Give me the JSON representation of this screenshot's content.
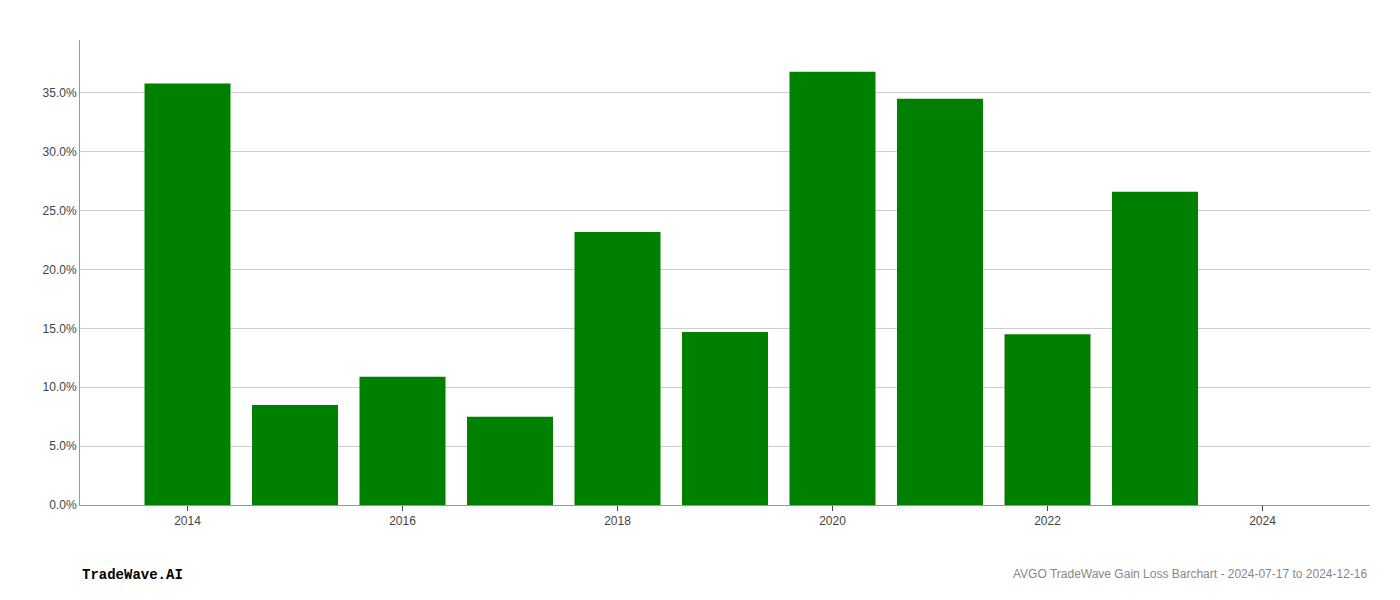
{
  "chart_data": {
    "type": "bar",
    "x": [
      2014,
      2015,
      2016,
      2017,
      2018,
      2019,
      2020,
      2021,
      2022,
      2023,
      2024
    ],
    "values": [
      0.358,
      0.085,
      0.109,
      0.075,
      0.232,
      0.147,
      0.368,
      0.345,
      0.145,
      0.266,
      0.0
    ],
    "color": "#008000",
    "xlim": [
      2013.0,
      2025.0
    ],
    "xticks": [
      2014,
      2016,
      2018,
      2020,
      2022,
      2024
    ],
    "ylim": [
      0,
      0.395
    ],
    "yticks": [
      {
        "value": 0.0,
        "label": "0.0%"
      },
      {
        "value": 0.05,
        "label": "5.0%"
      },
      {
        "value": 0.1,
        "label": "10.0%"
      },
      {
        "value": 0.15,
        "label": "15.0%"
      },
      {
        "value": 0.2,
        "label": "20.0%"
      },
      {
        "value": 0.25,
        "label": "25.0%"
      },
      {
        "value": 0.3,
        "label": "30.0%"
      },
      {
        "value": 0.35,
        "label": "35.0%"
      }
    ],
    "grid": true,
    "annotations": [
      "TradeWave.AI",
      "AVGO TradeWave Gain Loss Barchart - 2024-07-17 to 2024-12-16"
    ]
  }
}
